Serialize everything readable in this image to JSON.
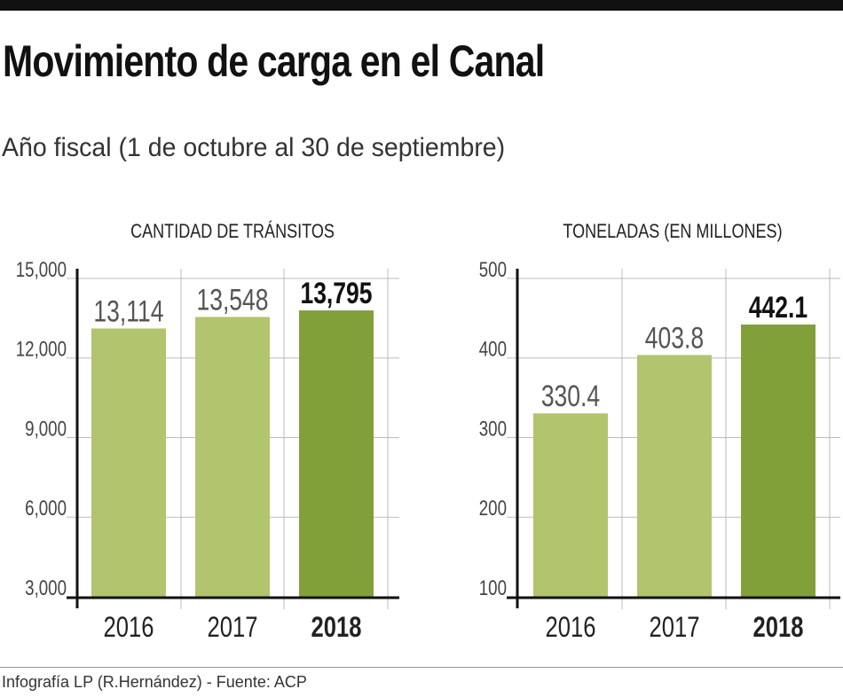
{
  "title": "Movimiento de carga en el Canal",
  "subtitle": "Año fiscal (1 de octubre al 30 de septiembre)",
  "footer": "Infografía LP (R.Hernández) - Fuente: ACP",
  "colors": {
    "bar_light": "#b2c46d",
    "bar_highlight": "#82a03a",
    "grid": "#bbbbbb",
    "axis": "#111111"
  },
  "chart_data": [
    {
      "type": "bar",
      "title": "CANTIDAD DE TRÁNSITOS",
      "categories": [
        "2016",
        "2017",
        "2018"
      ],
      "values": [
        13114,
        13548,
        13795
      ],
      "value_labels": [
        "13,114",
        "13,548",
        "13,795"
      ],
      "highlight": "2018",
      "ylim": [
        3000,
        15000
      ],
      "yticks": [
        3000,
        6000,
        9000,
        12000,
        15000
      ],
      "ytick_labels": [
        "3,000",
        "6,000",
        "9,000",
        "12,000",
        "15,000"
      ],
      "grid": true
    },
    {
      "type": "bar",
      "title": "TONELADAS (EN MILLONES)",
      "categories": [
        "2016",
        "2017",
        "2018"
      ],
      "values": [
        330.4,
        403.8,
        442.1
      ],
      "value_labels": [
        "330.4",
        "403.8",
        "442.1"
      ],
      "highlight": "2018",
      "ylim": [
        100,
        500
      ],
      "yticks": [
        100,
        200,
        300,
        400,
        500
      ],
      "ytick_labels": [
        "100",
        "200",
        "300",
        "400",
        "500"
      ],
      "grid": true
    }
  ]
}
